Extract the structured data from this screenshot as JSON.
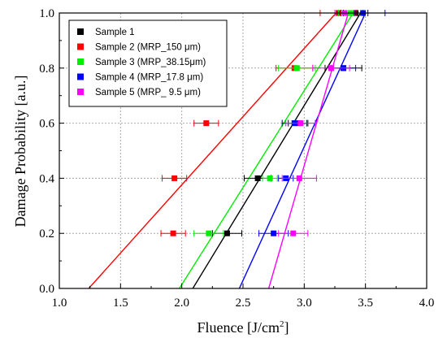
{
  "chart_data": {
    "type": "scatter",
    "xlabel": "Fluence [J/cm",
    "xlabel_sup": "2",
    "xlabel_end": "]",
    "ylabel": "Damage Probability [a.u.]",
    "xlim": [
      1.0,
      4.0
    ],
    "ylim": [
      0.0,
      1.0
    ],
    "x_ticks": [
      "1.0",
      "1.5",
      "2.0",
      "2.5",
      "3.0",
      "3.5",
      "4.0"
    ],
    "y_ticks": [
      "0.0",
      "0.2",
      "0.4",
      "0.6",
      "0.8",
      "1.0"
    ],
    "grid": true,
    "legend_position": "top-left",
    "series": [
      {
        "name": "Sample 1",
        "color": "#000000",
        "points": [
          {
            "x": 2.37,
            "y": 0.2,
            "xerr": 0.12
          },
          {
            "x": 2.62,
            "y": 0.4,
            "xerr": 0.11
          },
          {
            "x": 2.95,
            "y": 0.6,
            "xerr": 0.08
          },
          {
            "x": 3.32,
            "y": 0.8,
            "xerr": 0.15
          },
          {
            "x": 3.42,
            "y": 1.0,
            "xerr": 0.1
          }
        ],
        "fit": [
          [
            2.09,
            0.0
          ],
          [
            3.46,
            1.0
          ]
        ]
      },
      {
        "name": "Sample 2 (MRP_150 μm)",
        "color": "#ff0000",
        "points": [
          {
            "x": 1.93,
            "y": 0.2,
            "xerr": 0.1
          },
          {
            "x": 1.94,
            "y": 0.4,
            "xerr": 0.1
          },
          {
            "x": 2.2,
            "y": 0.6,
            "xerr": 0.1
          },
          {
            "x": 2.92,
            "y": 0.8,
            "xerr": 0.15
          },
          {
            "x": 3.28,
            "y": 1.0,
            "xerr": 0.15
          }
        ],
        "fit": [
          [
            1.24,
            0.0
          ],
          [
            3.26,
            1.0
          ]
        ]
      },
      {
        "name": "Sample 3 (MRP_38.15μm)",
        "color": "#00ee00",
        "points": [
          {
            "x": 2.22,
            "y": 0.2,
            "xerr": 0.12
          },
          {
            "x": 2.72,
            "y": 0.4,
            "xerr": 0.06
          },
          {
            "x": 2.92,
            "y": 0.6,
            "xerr": 0.1
          },
          {
            "x": 2.94,
            "y": 0.8,
            "xerr": 0.15
          },
          {
            "x": 3.38,
            "y": 1.0,
            "xerr": 0.1
          }
        ],
        "fit": [
          [
            1.98,
            0.0
          ],
          [
            3.4,
            1.0
          ]
        ]
      },
      {
        "name": "Sample 4 (MRP_17.8 μm)",
        "color": "#0000ff",
        "points": [
          {
            "x": 2.75,
            "y": 0.2,
            "xerr": 0.12
          },
          {
            "x": 2.85,
            "y": 0.4,
            "xerr": 0.06
          },
          {
            "x": 2.92,
            "y": 0.6,
            "xerr": 0.1
          },
          {
            "x": 3.32,
            "y": 0.8,
            "xerr": 0.1
          },
          {
            "x": 3.48,
            "y": 1.0,
            "xerr": 0.18
          }
        ],
        "fit": [
          [
            2.47,
            0.0
          ],
          [
            3.5,
            1.0
          ]
        ]
      },
      {
        "name": "Sample 5 (MRP_ 9.5 μm)",
        "color": "#ff00ff",
        "points": [
          {
            "x": 2.91,
            "y": 0.2,
            "xerr": 0.12
          },
          {
            "x": 2.96,
            "y": 0.4,
            "xerr": 0.14
          },
          {
            "x": 2.97,
            "y": 0.6,
            "xerr": 0.12
          },
          {
            "x": 3.22,
            "y": 0.8,
            "xerr": 0.15
          },
          {
            "x": 3.33,
            "y": 1.0,
            "xerr": 0.08
          }
        ],
        "fit": [
          [
            2.71,
            0.0
          ],
          [
            3.36,
            1.0
          ]
        ]
      }
    ]
  }
}
